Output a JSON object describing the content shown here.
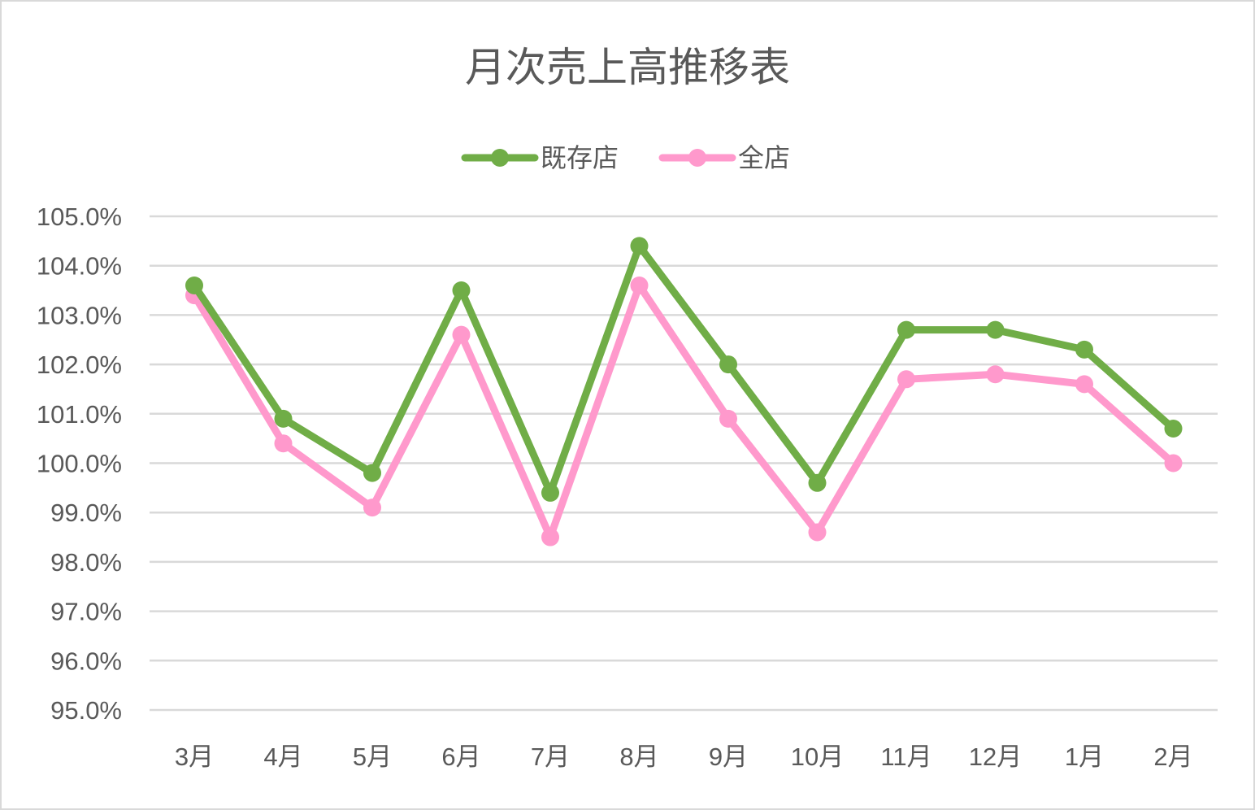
{
  "chart_data": {
    "type": "line",
    "title": "月次売上高推移表",
    "categories": [
      "3月",
      "4月",
      "5月",
      "6月",
      "7月",
      "8月",
      "9月",
      "10月",
      "11月",
      "12月",
      "1月",
      "2月"
    ],
    "series": [
      {
        "name": "既存店",
        "color": "#70ad47",
        "values": [
          103.6,
          100.9,
          99.8,
          103.5,
          99.4,
          104.4,
          102.0,
          99.6,
          102.7,
          102.7,
          102.3,
          100.7
        ]
      },
      {
        "name": "全店",
        "color": "#ff99cc",
        "values": [
          103.4,
          100.4,
          99.1,
          102.6,
          98.5,
          103.6,
          100.9,
          98.6,
          101.7,
          101.8,
          101.6,
          100.0
        ]
      }
    ],
    "ylim": [
      95.0,
      105.0
    ],
    "ytick_step": 1.0,
    "ytick_format": "percent_one_decimal",
    "grid": true,
    "legend_position": "top"
  }
}
